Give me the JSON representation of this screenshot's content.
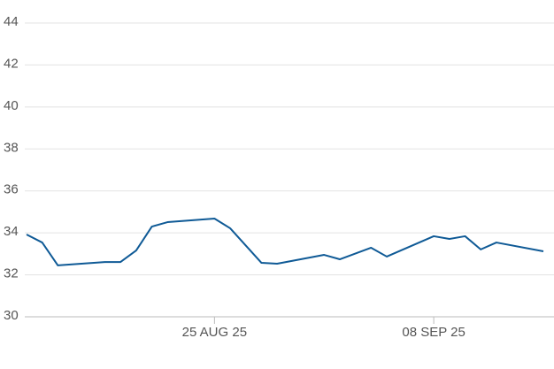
{
  "chart_data": {
    "type": "line",
    "x": [
      "2025-08-13",
      "2025-08-14",
      "2025-08-15",
      "2025-08-18",
      "2025-08-19",
      "2025-08-20",
      "2025-08-21",
      "2025-08-22",
      "2025-08-25",
      "2025-08-26",
      "2025-08-28",
      "2025-08-29",
      "2025-09-01",
      "2025-09-02",
      "2025-09-04",
      "2025-09-05",
      "2025-09-08",
      "2025-09-09",
      "2025-09-10",
      "2025-09-11",
      "2025-09-12",
      "2025-09-15"
    ],
    "series": [
      {
        "color": "#0f5a96",
        "values": [
          33.92,
          33.54,
          32.45,
          32.61,
          32.61,
          33.16,
          34.3,
          34.51,
          34.68,
          34.22,
          32.57,
          32.53,
          32.95,
          32.74,
          33.29,
          32.87,
          33.84,
          33.71,
          33.84,
          33.21,
          33.54,
          33.12
        ]
      }
    ],
    "xlim": [
      "2025-08-13",
      "2025-09-15"
    ],
    "xticks": [
      {
        "value": "2025-08-25",
        "label": "25 AUG 25"
      },
      {
        "value": "2025-09-08",
        "label": "08 SEP 25"
      }
    ],
    "ylim": [
      30,
      44
    ],
    "yticks": [
      30,
      32,
      34,
      36,
      38,
      40,
      42,
      44
    ],
    "grid": true
  }
}
